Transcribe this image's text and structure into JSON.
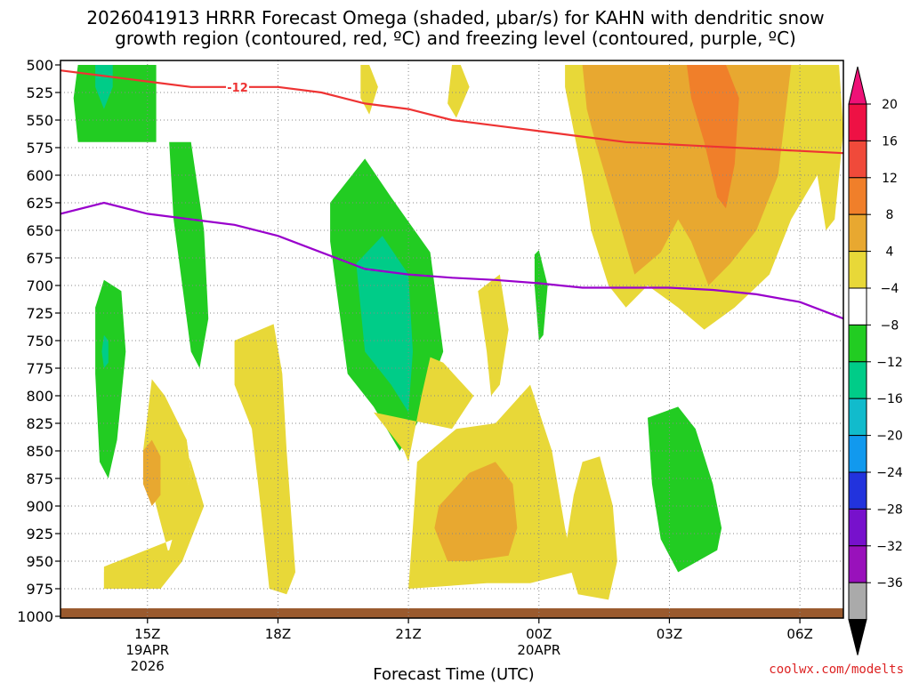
{
  "chart_data": {
    "type": "heatmap",
    "title": {
      "line1": "2026041913 HRRR Forecast Omega (shaded, μbar/s) for KAHN with dendritic snow",
      "line2": "growth region (contoured, red, ºC) and freezing level (contoured, purple, ºC)"
    },
    "xlabel": "Forecast Time (UTC)",
    "ylabel": "",
    "y_axis": {
      "reversed": true,
      "ylim": [
        1000,
        500
      ],
      "ticks": [
        "500",
        "525",
        "550",
        "575",
        "600",
        "625",
        "650",
        "675",
        "700",
        "725",
        "750",
        "775",
        "800",
        "825",
        "850",
        "875",
        "900",
        "925",
        "950",
        "975",
        "1000"
      ]
    },
    "x_axis": {
      "xlim": [
        13,
        31
      ],
      "ticks": [
        {
          "hour": 15,
          "label": "15Z",
          "date": "19APR",
          "year": "2026"
        },
        {
          "hour": 18,
          "label": "18Z",
          "date": "",
          "year": ""
        },
        {
          "hour": 21,
          "label": "21Z",
          "date": "",
          "year": ""
        },
        {
          "hour": 24,
          "label": "00Z",
          "date": "20APR",
          "year": ""
        },
        {
          "hour": 27,
          "label": "03Z",
          "date": "",
          "year": ""
        },
        {
          "hour": 30,
          "label": "06Z",
          "date": "",
          "year": ""
        }
      ]
    },
    "colorbar": {
      "labels": [
        "20",
        "16",
        "12",
        "8",
        "4",
        "−4",
        "−8",
        "−12",
        "−16",
        "−20",
        "−24",
        "−28",
        "−32",
        "−36"
      ],
      "bins": [
        {
          "color": "#ee1144"
        },
        {
          "color": "#f04a3a"
        },
        {
          "color": "#f07f2a"
        },
        {
          "color": "#e8a830"
        },
        {
          "color": "#e8d838"
        },
        {
          "color": "#ffffff"
        },
        {
          "color": "#22cc22"
        },
        {
          "color": "#00cc88"
        },
        {
          "color": "#11bbcc"
        },
        {
          "color": "#1199ee"
        },
        {
          "color": "#2233dd"
        },
        {
          "color": "#7711cc"
        },
        {
          "color": "#9911bb"
        },
        {
          "color": "#aaaaaa"
        }
      ],
      "top_arrow_color": "#ee1177",
      "bottom_arrow_color": "#000000"
    },
    "omega_regions": [
      {
        "level": "4",
        "color": "#e8d838",
        "pts": [
          [
            14,
            1000
          ],
          [
            13,
            1000
          ],
          [
            13,
            995
          ]
        ]
      },
      {
        "level": "-4",
        "color": "#22cc22",
        "pts": [
          [
            13.4,
            500
          ],
          [
            15.2,
            500
          ],
          [
            15.2,
            570
          ],
          [
            13.4,
            570
          ],
          [
            13.3,
            530
          ]
        ]
      },
      {
        "level": "-8",
        "color": "#00cc88",
        "pts": [
          [
            13.8,
            500
          ],
          [
            14.2,
            500
          ],
          [
            14.2,
            520
          ],
          [
            14.0,
            540
          ],
          [
            13.8,
            520
          ]
        ]
      },
      {
        "level": "-4",
        "color": "#22cc22",
        "pts": [
          [
            15.5,
            570
          ],
          [
            16.0,
            570
          ],
          [
            16.3,
            650
          ],
          [
            16.4,
            730
          ],
          [
            16.2,
            775
          ],
          [
            16.0,
            760
          ],
          [
            15.8,
            700
          ],
          [
            15.6,
            640
          ]
        ]
      },
      {
        "level": "-4",
        "color": "#22cc22",
        "pts": [
          [
            14.0,
            695
          ],
          [
            14.4,
            705
          ],
          [
            14.5,
            760
          ],
          [
            14.3,
            840
          ],
          [
            14.1,
            875
          ],
          [
            13.9,
            860
          ],
          [
            13.8,
            780
          ],
          [
            13.8,
            720
          ]
        ]
      },
      {
        "level": "-8",
        "color": "#00cc88",
        "pts": [
          [
            14.0,
            745
          ],
          [
            14.1,
            750
          ],
          [
            14.1,
            770
          ],
          [
            14.0,
            775
          ],
          [
            13.95,
            760
          ]
        ]
      },
      {
        "level": "4",
        "color": "#e8d838",
        "pts": [
          [
            15.1,
            785
          ],
          [
            15.4,
            800
          ],
          [
            15.9,
            840
          ],
          [
            16.0,
            870
          ],
          [
            15.5,
            940
          ],
          [
            14.0,
            960
          ],
          [
            14.0,
            975
          ],
          [
            15.3,
            975
          ],
          [
            15.8,
            950
          ],
          [
            16.3,
            900
          ],
          [
            16.0,
            860
          ]
        ]
      },
      {
        "level": "4",
        "color": "#e8d838",
        "pts": [
          [
            15.1,
            785
          ],
          [
            15.5,
            810
          ],
          [
            15.9,
            840
          ],
          [
            16.0,
            870
          ],
          [
            15.6,
            930
          ],
          [
            14.0,
            955
          ],
          [
            14.0,
            975
          ],
          [
            15.3,
            975
          ],
          [
            15.6,
            960
          ],
          [
            15.2,
            900
          ],
          [
            14.9,
            850
          ]
        ]
      },
      {
        "level": "8",
        "color": "#e8a830",
        "pts": [
          [
            15.1,
            840
          ],
          [
            15.3,
            855
          ],
          [
            15.3,
            890
          ],
          [
            15.1,
            900
          ],
          [
            14.9,
            880
          ],
          [
            14.9,
            850
          ]
        ]
      },
      {
        "level": "4",
        "color": "#e8d838",
        "pts": [
          [
            17.0,
            750
          ],
          [
            17.9,
            735
          ],
          [
            18.1,
            780
          ],
          [
            18.2,
            850
          ],
          [
            18.4,
            960
          ],
          [
            18.2,
            980
          ],
          [
            17.8,
            975
          ],
          [
            17.6,
            900
          ],
          [
            17.4,
            830
          ],
          [
            17.0,
            790
          ]
        ]
      },
      {
        "level": "-4",
        "color": "#22cc22",
        "pts": [
          [
            19.2,
            625
          ],
          [
            20.0,
            585
          ],
          [
            20.6,
            620
          ],
          [
            21.5,
            670
          ],
          [
            21.8,
            760
          ],
          [
            21.2,
            825
          ],
          [
            20.8,
            850
          ],
          [
            20.2,
            810
          ],
          [
            19.6,
            780
          ],
          [
            19.4,
            720
          ],
          [
            19.2,
            660
          ]
        ]
      },
      {
        "level": "-8",
        "color": "#00cc88",
        "pts": [
          [
            19.8,
            680
          ],
          [
            20.4,
            655
          ],
          [
            21.0,
            690
          ],
          [
            21.1,
            760
          ],
          [
            21.0,
            815
          ],
          [
            20.6,
            790
          ],
          [
            20.0,
            760
          ],
          [
            19.9,
            720
          ]
        ]
      },
      {
        "level": "4",
        "color": "#e8d838",
        "pts": [
          [
            20.2,
            815
          ],
          [
            20.9,
            850
          ],
          [
            21.0,
            860
          ],
          [
            21.1,
            840
          ],
          [
            21.3,
            800
          ],
          [
            21.5,
            765
          ],
          [
            21.8,
            770
          ],
          [
            22.5,
            800
          ],
          [
            22.0,
            830
          ]
        ]
      },
      {
        "level": "4",
        "color": "#e8d838",
        "pts": [
          [
            21.2,
            860
          ],
          [
            22.1,
            830
          ],
          [
            23.0,
            825
          ],
          [
            23.8,
            790
          ],
          [
            24.3,
            850
          ],
          [
            24.6,
            920
          ],
          [
            24.8,
            960
          ],
          [
            23.8,
            970
          ],
          [
            22.8,
            970
          ],
          [
            21.0,
            975
          ],
          [
            21.1,
            920
          ]
        ]
      },
      {
        "level": "8",
        "color": "#e8a830",
        "pts": [
          [
            21.7,
            900
          ],
          [
            22.4,
            870
          ],
          [
            23.0,
            860
          ],
          [
            23.4,
            880
          ],
          [
            23.5,
            920
          ],
          [
            23.3,
            945
          ],
          [
            22.4,
            950
          ],
          [
            21.9,
            950
          ],
          [
            21.6,
            920
          ]
        ]
      },
      {
        "level": "4",
        "color": "#e8d838",
        "pts": [
          [
            22.6,
            705
          ],
          [
            23.1,
            690
          ],
          [
            23.3,
            740
          ],
          [
            23.1,
            790
          ],
          [
            22.9,
            800
          ],
          [
            22.8,
            760
          ]
        ]
      },
      {
        "level": "-4",
        "color": "#22cc22",
        "pts": [
          [
            23.9,
            672
          ],
          [
            24.0,
            668
          ],
          [
            24.2,
            700
          ],
          [
            24.1,
            745
          ],
          [
            24.0,
            750
          ],
          [
            23.9,
            700
          ]
        ]
      },
      {
        "level": "4",
        "color": "#e8d838",
        "pts": [
          [
            24.8,
            890
          ],
          [
            25.0,
            860
          ],
          [
            25.4,
            855
          ],
          [
            25.7,
            900
          ],
          [
            25.8,
            950
          ],
          [
            25.6,
            985
          ],
          [
            24.9,
            980
          ],
          [
            24.6,
            940
          ]
        ]
      },
      {
        "level": "4",
        "color": "#e8d838",
        "pts": [
          [
            22.0,
            500
          ],
          [
            22.2,
            500
          ],
          [
            22.4,
            520
          ],
          [
            22.1,
            548
          ],
          [
            21.9,
            535
          ]
        ]
      },
      {
        "level": "4",
        "color": "#e8d838",
        "pts": [
          [
            19.9,
            500
          ],
          [
            20.1,
            500
          ],
          [
            20.3,
            520
          ],
          [
            20.1,
            545
          ],
          [
            19.9,
            530
          ]
        ]
      },
      {
        "level": "-4",
        "color": "#22cc22",
        "pts": [
          [
            26.5,
            820
          ],
          [
            27.2,
            810
          ],
          [
            27.6,
            830
          ],
          [
            28.0,
            880
          ],
          [
            28.2,
            920
          ],
          [
            28.1,
            940
          ],
          [
            27.2,
            960
          ],
          [
            26.8,
            930
          ],
          [
            26.6,
            880
          ]
        ]
      },
      {
        "level": "4",
        "color": "#e8d838",
        "pts": [
          [
            24.6,
            500
          ],
          [
            30.9,
            500
          ],
          [
            31.0,
            560
          ],
          [
            30.8,
            640
          ],
          [
            30.6,
            650
          ],
          [
            30.4,
            600
          ],
          [
            29.8,
            640
          ],
          [
            29.3,
            690
          ],
          [
            28.5,
            720
          ],
          [
            27.8,
            740
          ],
          [
            27.2,
            720
          ],
          [
            26.5,
            700
          ],
          [
            26.0,
            720
          ],
          [
            25.6,
            700
          ],
          [
            25.2,
            650
          ],
          [
            25.0,
            600
          ],
          [
            24.8,
            560
          ],
          [
            24.6,
            520
          ]
        ]
      },
      {
        "level": "8",
        "color": "#e8a830",
        "pts": [
          [
            25.0,
            500
          ],
          [
            29.8,
            500
          ],
          [
            29.5,
            600
          ],
          [
            29.0,
            650
          ],
          [
            28.4,
            680
          ],
          [
            27.9,
            700
          ],
          [
            27.5,
            660
          ],
          [
            27.2,
            640
          ],
          [
            26.8,
            670
          ],
          [
            26.2,
            690
          ],
          [
            25.9,
            650
          ],
          [
            25.6,
            610
          ],
          [
            25.3,
            570
          ],
          [
            25.1,
            540
          ]
        ]
      },
      {
        "level": "12",
        "color": "#f07f2a",
        "pts": [
          [
            27.4,
            500
          ],
          [
            28.3,
            500
          ],
          [
            28.6,
            530
          ],
          [
            28.5,
            590
          ],
          [
            28.3,
            630
          ],
          [
            28.1,
            620
          ],
          [
            27.8,
            570
          ],
          [
            27.5,
            530
          ]
        ]
      }
    ],
    "dgz_contour": {
      "label": "-12",
      "color": "#ee3333",
      "points": [
        [
          13,
          505
        ],
        [
          14,
          510
        ],
        [
          15,
          515
        ],
        [
          16,
          520
        ],
        [
          17,
          520
        ],
        [
          18,
          520
        ],
        [
          19,
          525
        ],
        [
          20,
          535
        ],
        [
          21,
          540
        ],
        [
          22,
          550
        ],
        [
          23,
          555
        ],
        [
          24,
          560
        ],
        [
          25,
          565
        ],
        [
          26,
          570
        ],
        [
          27,
          572
        ],
        [
          28,
          574
        ],
        [
          29,
          576
        ],
        [
          30,
          578
        ],
        [
          31,
          580
        ]
      ]
    },
    "freezing_contour": {
      "color": "#9900cc",
      "points": [
        [
          13,
          635
        ],
        [
          14,
          625
        ],
        [
          15,
          635
        ],
        [
          16,
          640
        ],
        [
          17,
          645
        ],
        [
          18,
          655
        ],
        [
          19,
          670
        ],
        [
          20,
          685
        ],
        [
          21,
          690
        ],
        [
          22,
          693
        ],
        [
          23,
          695
        ],
        [
          24,
          698
        ],
        [
          25,
          702
        ],
        [
          26,
          702
        ],
        [
          27,
          702
        ],
        [
          28,
          704
        ],
        [
          29,
          708
        ],
        [
          30,
          715
        ],
        [
          31,
          730
        ]
      ]
    }
  },
  "credit": "coolwx.com/modelts"
}
